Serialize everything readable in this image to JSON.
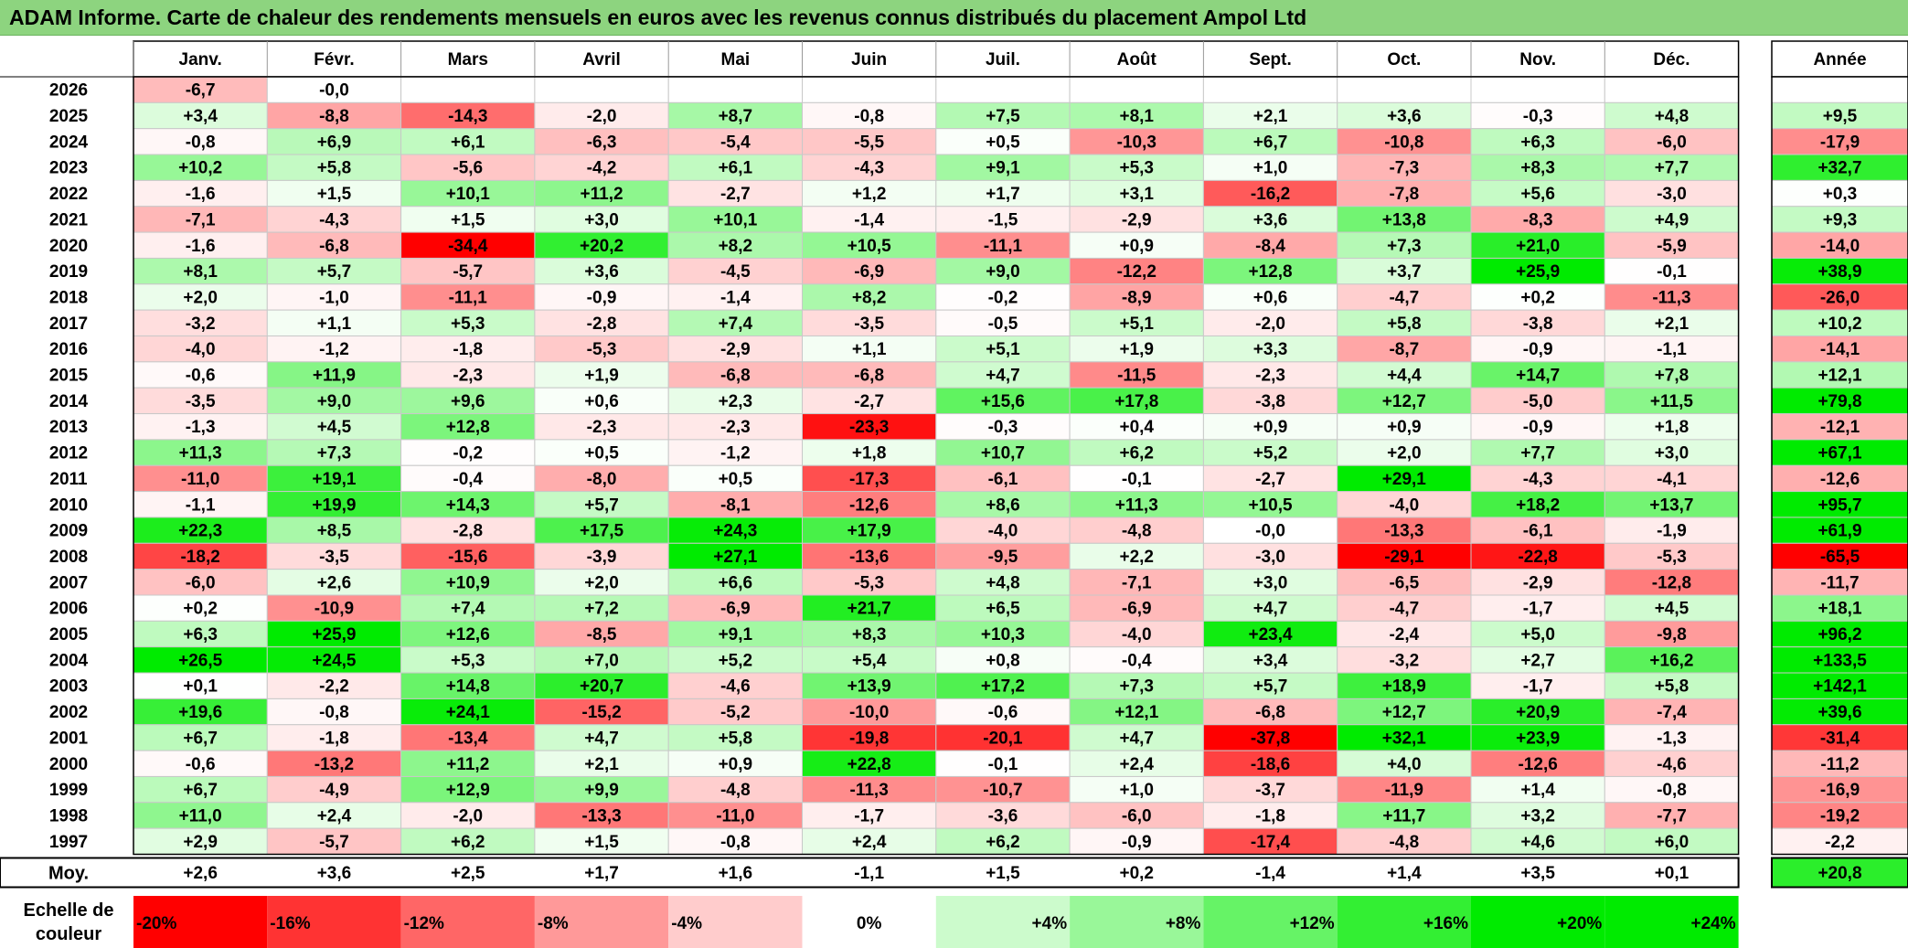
{
  "title": "ADAM Informe. Carte de chaleur des rendements mensuels en euros avec les revenus connus distribués du placement Ampol Ltd",
  "chart_data": {
    "type": "heatmap",
    "months": [
      "Janv.",
      "Févr.",
      "Mars",
      "Avril",
      "Mai",
      "Juin",
      "Juil.",
      "Août",
      "Sept.",
      "Oct.",
      "Nov.",
      "Déc."
    ],
    "annual_header": "Année",
    "avg_label": "Moy.",
    "scale_label_line1": "Echelle de",
    "scale_label_line2": "couleur",
    "scale_labels": [
      "-20%",
      "-16%",
      "-12%",
      "-8%",
      "-4%",
      "0%",
      "+4%",
      "+8%",
      "+12%",
      "+16%",
      "+20%",
      "+24%"
    ],
    "scale_values": [
      -20,
      -16,
      -12,
      -8,
      -4,
      0,
      4,
      8,
      12,
      16,
      20,
      24
    ],
    "rows": [
      {
        "year": "2026",
        "values": [
          "-6,7",
          "-0,0",
          "",
          "",
          "",
          "",
          "",
          "",
          "",
          "",
          "",
          ""
        ],
        "annual": ""
      },
      {
        "year": "2025",
        "values": [
          "+3,4",
          "-8,8",
          "-14,3",
          "-2,0",
          "+8,7",
          "-0,8",
          "+7,5",
          "+8,1",
          "+2,1",
          "+3,6",
          "-0,3",
          "+4,8"
        ],
        "annual": "+9,5"
      },
      {
        "year": "2024",
        "values": [
          "-0,8",
          "+6,9",
          "+6,1",
          "-6,3",
          "-5,4",
          "-5,5",
          "+0,5",
          "-10,3",
          "+6,7",
          "-10,8",
          "+6,3",
          "-6,0"
        ],
        "annual": "-17,9"
      },
      {
        "year": "2023",
        "values": [
          "+10,2",
          "+5,8",
          "-5,6",
          "-4,2",
          "+6,1",
          "-4,3",
          "+9,1",
          "+5,3",
          "+1,0",
          "-7,3",
          "+8,3",
          "+7,7"
        ],
        "annual": "+32,7"
      },
      {
        "year": "2022",
        "values": [
          "-1,6",
          "+1,5",
          "+10,1",
          "+11,2",
          "-2,7",
          "+1,2",
          "+1,7",
          "+3,1",
          "-16,2",
          "-7,8",
          "+5,6",
          "-3,0"
        ],
        "annual": "+0,3"
      },
      {
        "year": "2021",
        "values": [
          "-7,1",
          "-4,3",
          "+1,5",
          "+3,0",
          "+10,1",
          "-1,4",
          "-1,5",
          "-2,9",
          "+3,6",
          "+13,8",
          "-8,3",
          "+4,9"
        ],
        "annual": "+9,3"
      },
      {
        "year": "2020",
        "values": [
          "-1,6",
          "-6,8",
          "-34,4",
          "+20,2",
          "+8,2",
          "+10,5",
          "-11,1",
          "+0,9",
          "-8,4",
          "+7,3",
          "+21,0",
          "-5,9"
        ],
        "annual": "-14,0"
      },
      {
        "year": "2019",
        "values": [
          "+8,1",
          "+5,7",
          "-5,7",
          "+3,6",
          "-4,5",
          "-6,9",
          "+9,0",
          "-12,2",
          "+12,8",
          "+3,7",
          "+25,9",
          "-0,1"
        ],
        "annual": "+38,9"
      },
      {
        "year": "2018",
        "values": [
          "+2,0",
          "-1,0",
          "-11,1",
          "-0,9",
          "-1,4",
          "+8,2",
          "-0,2",
          "-8,9",
          "+0,6",
          "-4,7",
          "+0,2",
          "-11,3"
        ],
        "annual": "-26,0"
      },
      {
        "year": "2017",
        "values": [
          "-3,2",
          "+1,1",
          "+5,3",
          "-2,8",
          "+7,4",
          "-3,5",
          "-0,5",
          "+5,1",
          "-2,0",
          "+5,8",
          "-3,8",
          "+2,1"
        ],
        "annual": "+10,2"
      },
      {
        "year": "2016",
        "values": [
          "-4,0",
          "-1,2",
          "-1,8",
          "-5,3",
          "-2,9",
          "+1,1",
          "+5,1",
          "+1,9",
          "+3,3",
          "-8,7",
          "-0,9",
          "-1,1"
        ],
        "annual": "-14,1"
      },
      {
        "year": "2015",
        "values": [
          "-0,6",
          "+11,9",
          "-2,3",
          "+1,9",
          "-6,8",
          "-6,8",
          "+4,7",
          "-11,5",
          "-2,3",
          "+4,4",
          "+14,7",
          "+7,8"
        ],
        "annual": "+12,1"
      },
      {
        "year": "2014",
        "values": [
          "-3,5",
          "+9,0",
          "+9,6",
          "+0,6",
          "+2,3",
          "-2,7",
          "+15,6",
          "+17,8",
          "-3,8",
          "+12,7",
          "-5,0",
          "+11,5"
        ],
        "annual": "+79,8"
      },
      {
        "year": "2013",
        "values": [
          "-1,3",
          "+4,5",
          "+12,8",
          "-2,3",
          "-2,3",
          "-23,3",
          "-0,3",
          "+0,4",
          "+0,9",
          "+0,9",
          "-0,9",
          "+1,8"
        ],
        "annual": "-12,1"
      },
      {
        "year": "2012",
        "values": [
          "+11,3",
          "+7,3",
          "-0,2",
          "+0,5",
          "-1,2",
          "+1,8",
          "+10,7",
          "+6,2",
          "+5,2",
          "+2,0",
          "+7,7",
          "+3,0"
        ],
        "annual": "+67,1"
      },
      {
        "year": "2011",
        "values": [
          "-11,0",
          "+19,1",
          "-0,4",
          "-8,0",
          "+0,5",
          "-17,3",
          "-6,1",
          "-0,1",
          "-2,7",
          "+29,1",
          "-4,3",
          "-4,1"
        ],
        "annual": "-12,6"
      },
      {
        "year": "2010",
        "values": [
          "-1,1",
          "+19,9",
          "+14,3",
          "+5,7",
          "-8,1",
          "-12,6",
          "+8,6",
          "+11,3",
          "+10,5",
          "-4,0",
          "+18,2",
          "+13,7"
        ],
        "annual": "+95,7"
      },
      {
        "year": "2009",
        "values": [
          "+22,3",
          "+8,5",
          "-2,8",
          "+17,5",
          "+24,3",
          "+17,9",
          "-4,0",
          "-4,8",
          "-0,0",
          "-13,3",
          "-6,1",
          "-1,9"
        ],
        "annual": "+61,9"
      },
      {
        "year": "2008",
        "values": [
          "-18,2",
          "-3,5",
          "-15,6",
          "-3,9",
          "+27,1",
          "-13,6",
          "-9,5",
          "+2,2",
          "-3,0",
          "-29,1",
          "-22,8",
          "-5,3"
        ],
        "annual": "-65,5"
      },
      {
        "year": "2007",
        "values": [
          "-6,0",
          "+2,6",
          "+10,9",
          "+2,0",
          "+6,6",
          "-5,3",
          "+4,8",
          "-7,1",
          "+3,0",
          "-6,5",
          "-2,9",
          "-12,8"
        ],
        "annual": "-11,7"
      },
      {
        "year": "2006",
        "values": [
          "+0,2",
          "-10,9",
          "+7,4",
          "+7,2",
          "-6,9",
          "+21,7",
          "+6,5",
          "-6,9",
          "+4,7",
          "-4,7",
          "-1,7",
          "+4,5"
        ],
        "annual": "+18,1"
      },
      {
        "year": "2005",
        "values": [
          "+6,3",
          "+25,9",
          "+12,6",
          "-8,5",
          "+9,1",
          "+8,3",
          "+10,3",
          "-4,0",
          "+23,4",
          "-2,4",
          "+5,0",
          "-9,8"
        ],
        "annual": "+96,2"
      },
      {
        "year": "2004",
        "values": [
          "+26,5",
          "+24,5",
          "+5,3",
          "+7,0",
          "+5,2",
          "+5,4",
          "+0,8",
          "-0,4",
          "+3,4",
          "-3,2",
          "+2,7",
          "+16,2"
        ],
        "annual": "+133,5"
      },
      {
        "year": "2003",
        "values": [
          "+0,1",
          "-2,2",
          "+14,8",
          "+20,7",
          "-4,6",
          "+13,9",
          "+17,2",
          "+7,3",
          "+5,7",
          "+18,9",
          "-1,7",
          "+5,8"
        ],
        "annual": "+142,1"
      },
      {
        "year": "2002",
        "values": [
          "+19,6",
          "-0,8",
          "+24,1",
          "-15,2",
          "-5,2",
          "-10,0",
          "-0,6",
          "+12,1",
          "-6,8",
          "+12,7",
          "+20,9",
          "-7,4"
        ],
        "annual": "+39,6"
      },
      {
        "year": "2001",
        "values": [
          "+6,7",
          "-1,8",
          "-13,4",
          "+4,7",
          "+5,8",
          "-19,8",
          "-20,1",
          "+4,7",
          "-37,8",
          "+32,1",
          "+23,9",
          "-1,3"
        ],
        "annual": "-31,4"
      },
      {
        "year": "2000",
        "values": [
          "-0,6",
          "-13,2",
          "+11,2",
          "+2,1",
          "+0,9",
          "+22,8",
          "-0,1",
          "+2,4",
          "-18,6",
          "+4,0",
          "-12,6",
          "-4,6"
        ],
        "annual": "-11,2"
      },
      {
        "year": "1999",
        "values": [
          "+6,7",
          "-4,9",
          "+12,9",
          "+9,9",
          "-4,8",
          "-11,3",
          "-10,7",
          "+1,0",
          "-3,7",
          "-11,9",
          "+1,4",
          "-0,8"
        ],
        "annual": "-16,9"
      },
      {
        "year": "1998",
        "values": [
          "+11,0",
          "+2,4",
          "-2,0",
          "-13,3",
          "-11,0",
          "-1,7",
          "-3,6",
          "-6,0",
          "-1,8",
          "+11,7",
          "+3,2",
          "-7,7"
        ],
        "annual": "-19,2"
      },
      {
        "year": "1997",
        "values": [
          "+2,9",
          "-5,7",
          "+6,2",
          "+1,5",
          "-0,8",
          "+2,4",
          "+6,2",
          "-0,9",
          "-17,4",
          "-4,8",
          "+4,6",
          "+6,0"
        ],
        "annual": "-2,2"
      }
    ],
    "average": {
      "values": [
        "+2,6",
        "+3,6",
        "+2,5",
        "+1,7",
        "+1,6",
        "-1,1",
        "+1,5",
        "+0,2",
        "-1,4",
        "+1,4",
        "+3,5",
        "+0,1"
      ],
      "annual": "+20,8"
    }
  }
}
